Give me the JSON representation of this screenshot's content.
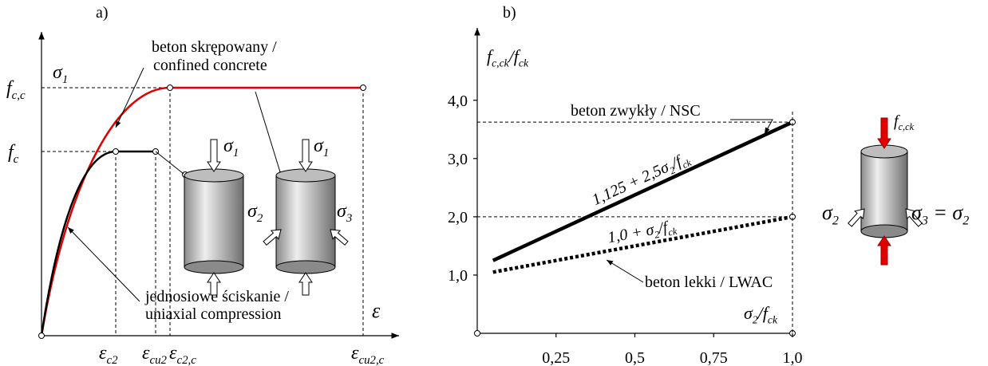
{
  "panel_a": {
    "label": "a)",
    "y_label": [
      "σ",
      "1"
    ],
    "x_label": [
      "ε"
    ],
    "y_ticks": [
      [
        "f",
        "c,c"
      ],
      [
        "f",
        "c"
      ]
    ],
    "x_ticks": [
      [
        "ε",
        "c2"
      ],
      [
        "ε",
        "cu2"
      ],
      [
        "ε",
        "c2,c"
      ],
      [
        "ε",
        "cu2,c"
      ]
    ],
    "confined_label": [
      "beton skrępowany /",
      "confined concrete"
    ],
    "uniaxial_label": [
      "jednosiowe ściskanie /",
      "uniaxial compression"
    ],
    "cylinder_1": {
      "top": [
        "σ",
        "1"
      ]
    },
    "cylinder_2": {
      "top": [
        "σ",
        "1"
      ],
      "left": [
        "σ",
        "2"
      ],
      "right": [
        "σ",
        "3"
      ]
    }
  },
  "chart_data": {
    "type": "line",
    "panel_label": "b)",
    "xlabel": [
      "σ",
      "2",
      "/f",
      "ck"
    ],
    "ylabel": [
      "f",
      "c,ck",
      "/f",
      "ck"
    ],
    "x": [
      0.05,
      1.0
    ],
    "series": [
      {
        "name": "beton zwykły / NSC",
        "color": "#000000",
        "style": "solid",
        "values": [
          1.25,
          3.625
        ],
        "formula": [
          "1,125 + 2,5σ",
          "2",
          "/f",
          "ck"
        ]
      },
      {
        "name": "beton lekki / LWAC",
        "color": "#000000",
        "style": "dotted",
        "values": [
          1.05,
          2.0
        ],
        "formula": [
          "1,0 + σ",
          "2",
          "/f",
          "ck"
        ]
      }
    ],
    "xlim": [
      0,
      1
    ],
    "ylim": [
      0,
      4.9
    ],
    "xticks": [
      {
        "value": 0.25,
        "label": "0,25"
      },
      {
        "value": 0.5,
        "label": "0,5"
      },
      {
        "value": 0.75,
        "label": "0,75"
      },
      {
        "value": 1,
        "label": "1,0"
      }
    ],
    "yticks": [
      {
        "value": 1,
        "label": "1,0"
      },
      {
        "value": 2,
        "label": "2,0"
      },
      {
        "value": 3,
        "label": "3,0"
      },
      {
        "value": 4,
        "label": "4,0"
      }
    ],
    "cylinder": {
      "top": [
        "f",
        "c,ck"
      ],
      "left": [
        "σ",
        "2"
      ],
      "right": [
        "σ",
        "3",
        " = σ",
        "2"
      ]
    }
  }
}
